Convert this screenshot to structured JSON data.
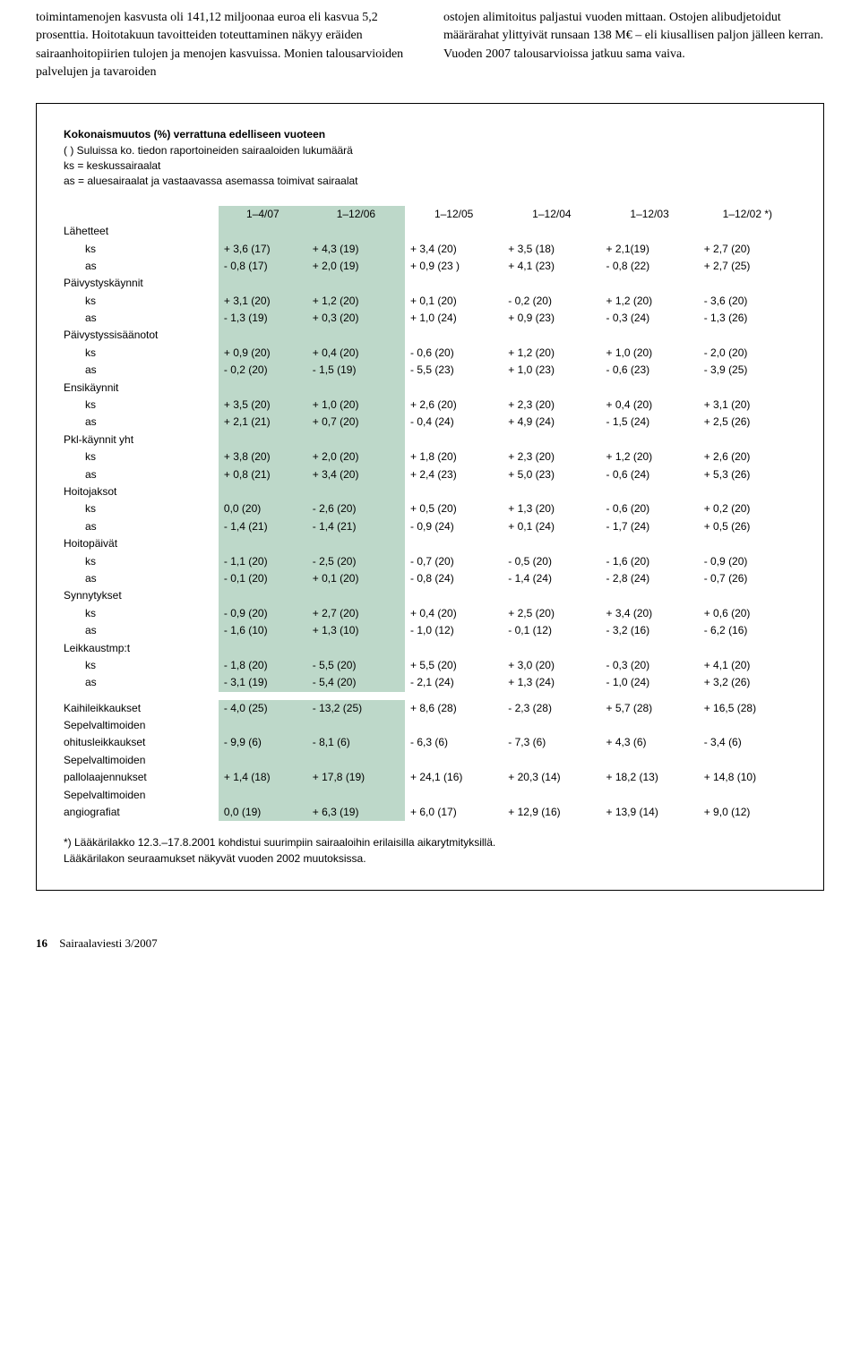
{
  "top": {
    "left": "toimintamenojen kasvusta oli 141,12 miljoonaa euroa eli kasvua 5,2 prosenttia. Hoitotakuun tavoitteiden toteuttaminen näkyy eräiden sairaanhoitopiirien tulojen ja menojen kasvuissa.\n  Monien talousarvioiden palvelujen ja tavaroiden",
    "right": "ostojen alimitoitus paljastui vuoden mittaan. Ostojen alibudjetoidut määrärahat ylittyivät runsaan 138 M€ – eli kiusallisen paljon jälleen kerran. Vuoden 2007 talousarvioissa jatkuu sama vaiva."
  },
  "box": {
    "heading": "Kokonaismuutos (%) verrattuna edelliseen vuoteen",
    "sub1": "(  ) Suluissa ko. tiedon raportoineiden sairaaloiden lukumäärä",
    "sub2": "ks = keskussairaalat",
    "sub3": "as = aluesairaalat ja vastaavassa asemassa toimivat sairaalat",
    "cols": [
      "",
      "1–4/07",
      "1–12/06",
      "1–12/05",
      "1–12/04",
      "1–12/03",
      "1–12/02 *)"
    ],
    "hl_count": 2,
    "groups": [
      {
        "label": "Lähetteet",
        "rows": [
          {
            "l": "ks",
            "c": [
              "+ 3,6 (17)",
              "+ 4,3 (19)",
              "+ 3,4 (20)",
              "+ 3,5 (18)",
              "+ 2,1(19)",
              "+ 2,7 (20)"
            ]
          },
          {
            "l": "as",
            "c": [
              "- 0,8 (17)",
              "+ 2,0 (19)",
              "+ 0,9 (23 )",
              "+ 4,1 (23)",
              "- 0,8 (22)",
              "+ 2,7 (25)"
            ]
          }
        ]
      },
      {
        "label": "Päivystyskäynnit",
        "rows": [
          {
            "l": "ks",
            "c": [
              "+ 3,1 (20)",
              "+ 1,2 (20)",
              "+ 0,1 (20)",
              "- 0,2 (20)",
              "+ 1,2 (20)",
              "- 3,6 (20)"
            ]
          },
          {
            "l": "as",
            "c": [
              "- 1,3 (19)",
              "+ 0,3 (20)",
              "+ 1,0 (24)",
              "+ 0,9 (23)",
              "- 0,3 (24)",
              "- 1,3 (26)"
            ]
          }
        ]
      },
      {
        "label": "Päivystyssisäänotot",
        "rows": [
          {
            "l": "ks",
            "c": [
              "+ 0,9 (20)",
              "+ 0,4 (20)",
              "- 0,6 (20)",
              "+ 1,2 (20)",
              "+ 1,0 (20)",
              "- 2,0 (20)"
            ]
          },
          {
            "l": "as",
            "c": [
              "- 0,2 (20)",
              "- 1,5 (19)",
              "- 5,5 (23)",
              "+ 1,0 (23)",
              "- 0,6 (23)",
              "- 3,9 (25)"
            ]
          }
        ]
      },
      {
        "label": "Ensikäynnit",
        "rows": [
          {
            "l": "ks",
            "c": [
              "+ 3,5 (20)",
              "+ 1,0 (20)",
              "+ 2,6 (20)",
              "+ 2,3 (20)",
              "+ 0,4 (20)",
              "+ 3,1 (20)"
            ]
          },
          {
            "l": "as",
            "c": [
              "+ 2,1 (21)",
              "+ 0,7 (20)",
              "- 0,4 (24)",
              "+ 4,9 (24)",
              "- 1,5 (24)",
              "+ 2,5 (26)"
            ]
          }
        ]
      },
      {
        "label": "Pkl-käynnit yht",
        "rows": [
          {
            "l": "ks",
            "c": [
              "+ 3,8 (20)",
              "+ 2,0 (20)",
              "+ 1,8 (20)",
              "+ 2,3 (20)",
              "+ 1,2 (20)",
              "+ 2,6 (20)"
            ]
          },
          {
            "l": "as",
            "c": [
              "+ 0,8 (21)",
              "+ 3,4 (20)",
              "+ 2,4 (23)",
              "+ 5,0 (23)",
              "- 0,6 (24)",
              "+ 5,3 (26)"
            ]
          }
        ]
      },
      {
        "label": "Hoitojaksot",
        "rows": [
          {
            "l": "ks",
            "c": [
              "  0,0 (20)",
              "- 2,6 (20)",
              "+ 0,5 (20)",
              "+ 1,3 (20)",
              "- 0,6 (20)",
              "+ 0,2 (20)"
            ]
          },
          {
            "l": "as",
            "c": [
              "- 1,4 (21)",
              "- 1,4 (21)",
              "- 0,9 (24)",
              "+ 0,1 (24)",
              "- 1,7 (24)",
              "+ 0,5 (26)"
            ]
          }
        ]
      },
      {
        "label": "Hoitopäivät",
        "rows": [
          {
            "l": "ks",
            "c": [
              "- 1,1 (20)",
              "- 2,5 (20)",
              "- 0,7 (20)",
              "- 0,5 (20)",
              "- 1,6 (20)",
              "- 0,9 (20)"
            ]
          },
          {
            "l": "as",
            "c": [
              "- 0,1 (20)",
              "+ 0,1 (20)",
              "- 0,8 (24)",
              "- 1,4 (24)",
              "- 2,8 (24)",
              "- 0,7 (26)"
            ]
          }
        ]
      },
      {
        "label": "Synnytykset",
        "rows": [
          {
            "l": "ks",
            "c": [
              "- 0,9 (20)",
              "+ 2,7 (20)",
              "+ 0,4 (20)",
              "+ 2,5 (20)",
              "+ 3,4 (20)",
              "+ 0,6 (20)"
            ]
          },
          {
            "l": "as",
            "c": [
              "- 1,6 (10)",
              "+ 1,3 (10)",
              "- 1,0 (12)",
              "- 0,1 (12)",
              "- 3,2 (16)",
              "- 6,2 (16)"
            ]
          }
        ]
      },
      {
        "label": "Leikkaustmp:t",
        "rows": [
          {
            "l": "ks",
            "c": [
              "- 1,8 (20)",
              "- 5,5 (20)",
              "+ 5,5 (20)",
              "+ 3,0 (20)",
              "- 0,3 (20)",
              "+ 4,1 (20)"
            ]
          },
          {
            "l": "as",
            "c": [
              "- 3,1 (19)",
              "- 5,4 (20)",
              "- 2,1 (24)",
              "+ 1,3 (24)",
              "- 1,0 (24)",
              "+ 3,2 (26)"
            ]
          }
        ]
      }
    ],
    "extra": [
      {
        "l": "Kaihileikkaukset",
        "c": [
          "- 4,0 (25)",
          "- 13,2 (25)",
          "+ 8,6 (28)",
          "- 2,3 (28)",
          "+ 5,7 (28)",
          "+ 16,5 (28)"
        ]
      },
      {
        "l": "Sepelvaltimoiden",
        "c": [
          "",
          "",
          "",
          "",
          "",
          ""
        ]
      },
      {
        "l": "ohitusleikkaukset",
        "c": [
          "- 9,9 (6)",
          "-  8,1 (6)",
          "- 6,3 (6)",
          "- 7,3 (6)",
          "+ 4,3 (6)",
          "- 3,4 (6)"
        ]
      },
      {
        "l": "Sepelvaltimoiden",
        "c": [
          "",
          "",
          "",
          "",
          "",
          ""
        ]
      },
      {
        "l": "pallolaajennukset",
        "c": [
          "+ 1,4 (18)",
          "+ 17,8 (19)",
          "+ 24,1 (16)",
          "+ 20,3 (14)",
          "+ 18,2 (13)",
          "+ 14,8 (10)"
        ]
      },
      {
        "l": "Sepelvaltimoiden",
        "c": [
          "",
          "",
          "",
          "",
          "",
          ""
        ]
      },
      {
        "l": "angiografiat",
        "c": [
          "  0,0 (19)",
          "+  6,3 (19)",
          "+ 6,0 (17)",
          "+ 12,9 (16)",
          "+ 13,9 (14)",
          "+ 9,0 (12)"
        ]
      }
    ],
    "footnote1": "*) Lääkärilakko 12.3.–17.8.2001 kohdistui suurimpiin sairaaloihin erilaisilla aikarytmityksillä.",
    "footnote2": "Lääkärilakon seuraamukset näkyvät vuoden 2002 muutoksissa."
  },
  "footer": {
    "page": "16",
    "pub": "Sairaalaviesti  3/2007"
  },
  "colors": {
    "highlight": "#bdd8c9",
    "border": "#000000",
    "background": "#ffffff"
  }
}
